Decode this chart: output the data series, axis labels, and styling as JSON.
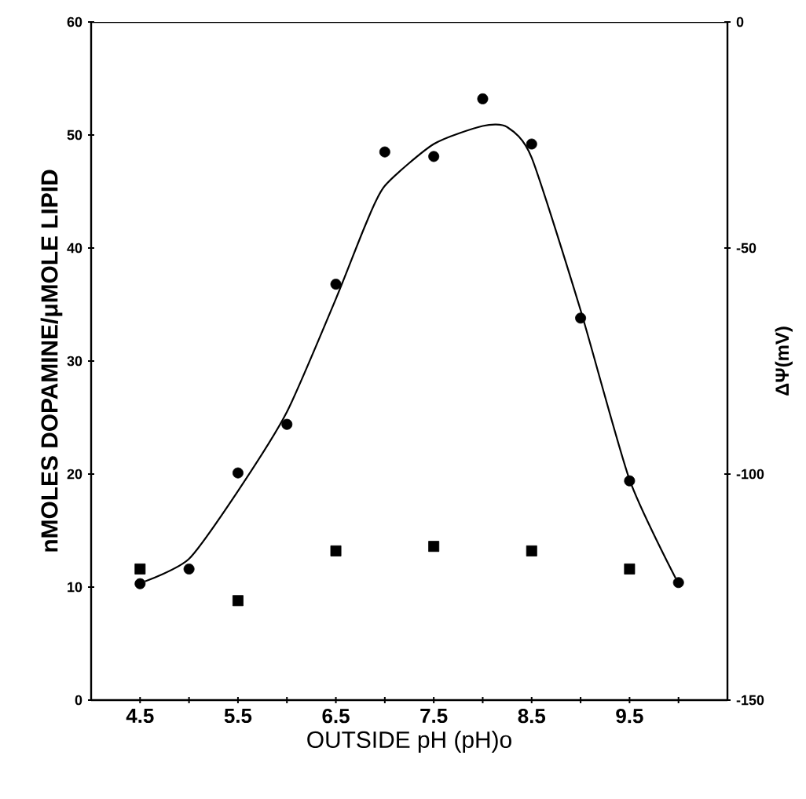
{
  "chart_data": {
    "type": "scatter",
    "xlabel": "OUTSIDE pH (pH)o",
    "ylabel": "nMOLES DOPAMINE/μMOLE LIPID",
    "y2label": "ΔΨ(mV)",
    "xlim": [
      4.0,
      10.5
    ],
    "xticks": [
      4.5,
      {
        "value": 5.0,
        "label": null
      },
      5.5,
      {
        "value": 6.0,
        "label": null
      },
      6.5,
      {
        "value": 7.0,
        "label": null
      },
      7.5,
      {
        "value": 8.0,
        "label": null
      },
      8.5,
      {
        "value": 9.0,
        "label": null
      },
      9.5,
      {
        "value": 10.0,
        "label": null
      }
    ],
    "ylim": [
      0,
      60
    ],
    "yticks": [
      0,
      10,
      20,
      30,
      40,
      50,
      60
    ],
    "y2lim": [
      -150,
      0
    ],
    "y2ticks": [
      -150,
      -100,
      -50,
      0
    ],
    "grid": false,
    "series": [
      {
        "marker": "circle",
        "color": "#000000",
        "x": [
          4.5,
          5.0,
          5.5,
          6.0,
          6.5,
          7.0,
          7.5,
          8.0,
          8.5,
          9.0,
          9.5,
          10.0
        ],
        "values": [
          10.3,
          11.6,
          20.1,
          24.4,
          36.8,
          48.5,
          48.1,
          53.2,
          49.2,
          33.8,
          19.4,
          10.4
        ]
      },
      {
        "type": "line",
        "marker": "none",
        "line_style": "solid",
        "color": "#000000",
        "x": [
          4.55,
          5.0,
          5.5,
          6.0,
          6.5,
          6.8,
          7.0,
          7.5,
          8.0,
          8.25,
          8.5,
          9.0,
          9.5,
          9.97
        ],
        "values": [
          10.5,
          12.5,
          18.5,
          25.5,
          35.5,
          42.0,
          45.5,
          49.2,
          50.8,
          50.7,
          48.0,
          34.5,
          19.5,
          10.8
        ]
      },
      {
        "marker": "square",
        "color": "#000000",
        "axis": "y2",
        "x": [
          4.5,
          5.5,
          6.5,
          7.5,
          8.5,
          9.5
        ],
        "values": [
          -121,
          -128,
          -117,
          -116,
          -117,
          -121
        ]
      }
    ]
  }
}
